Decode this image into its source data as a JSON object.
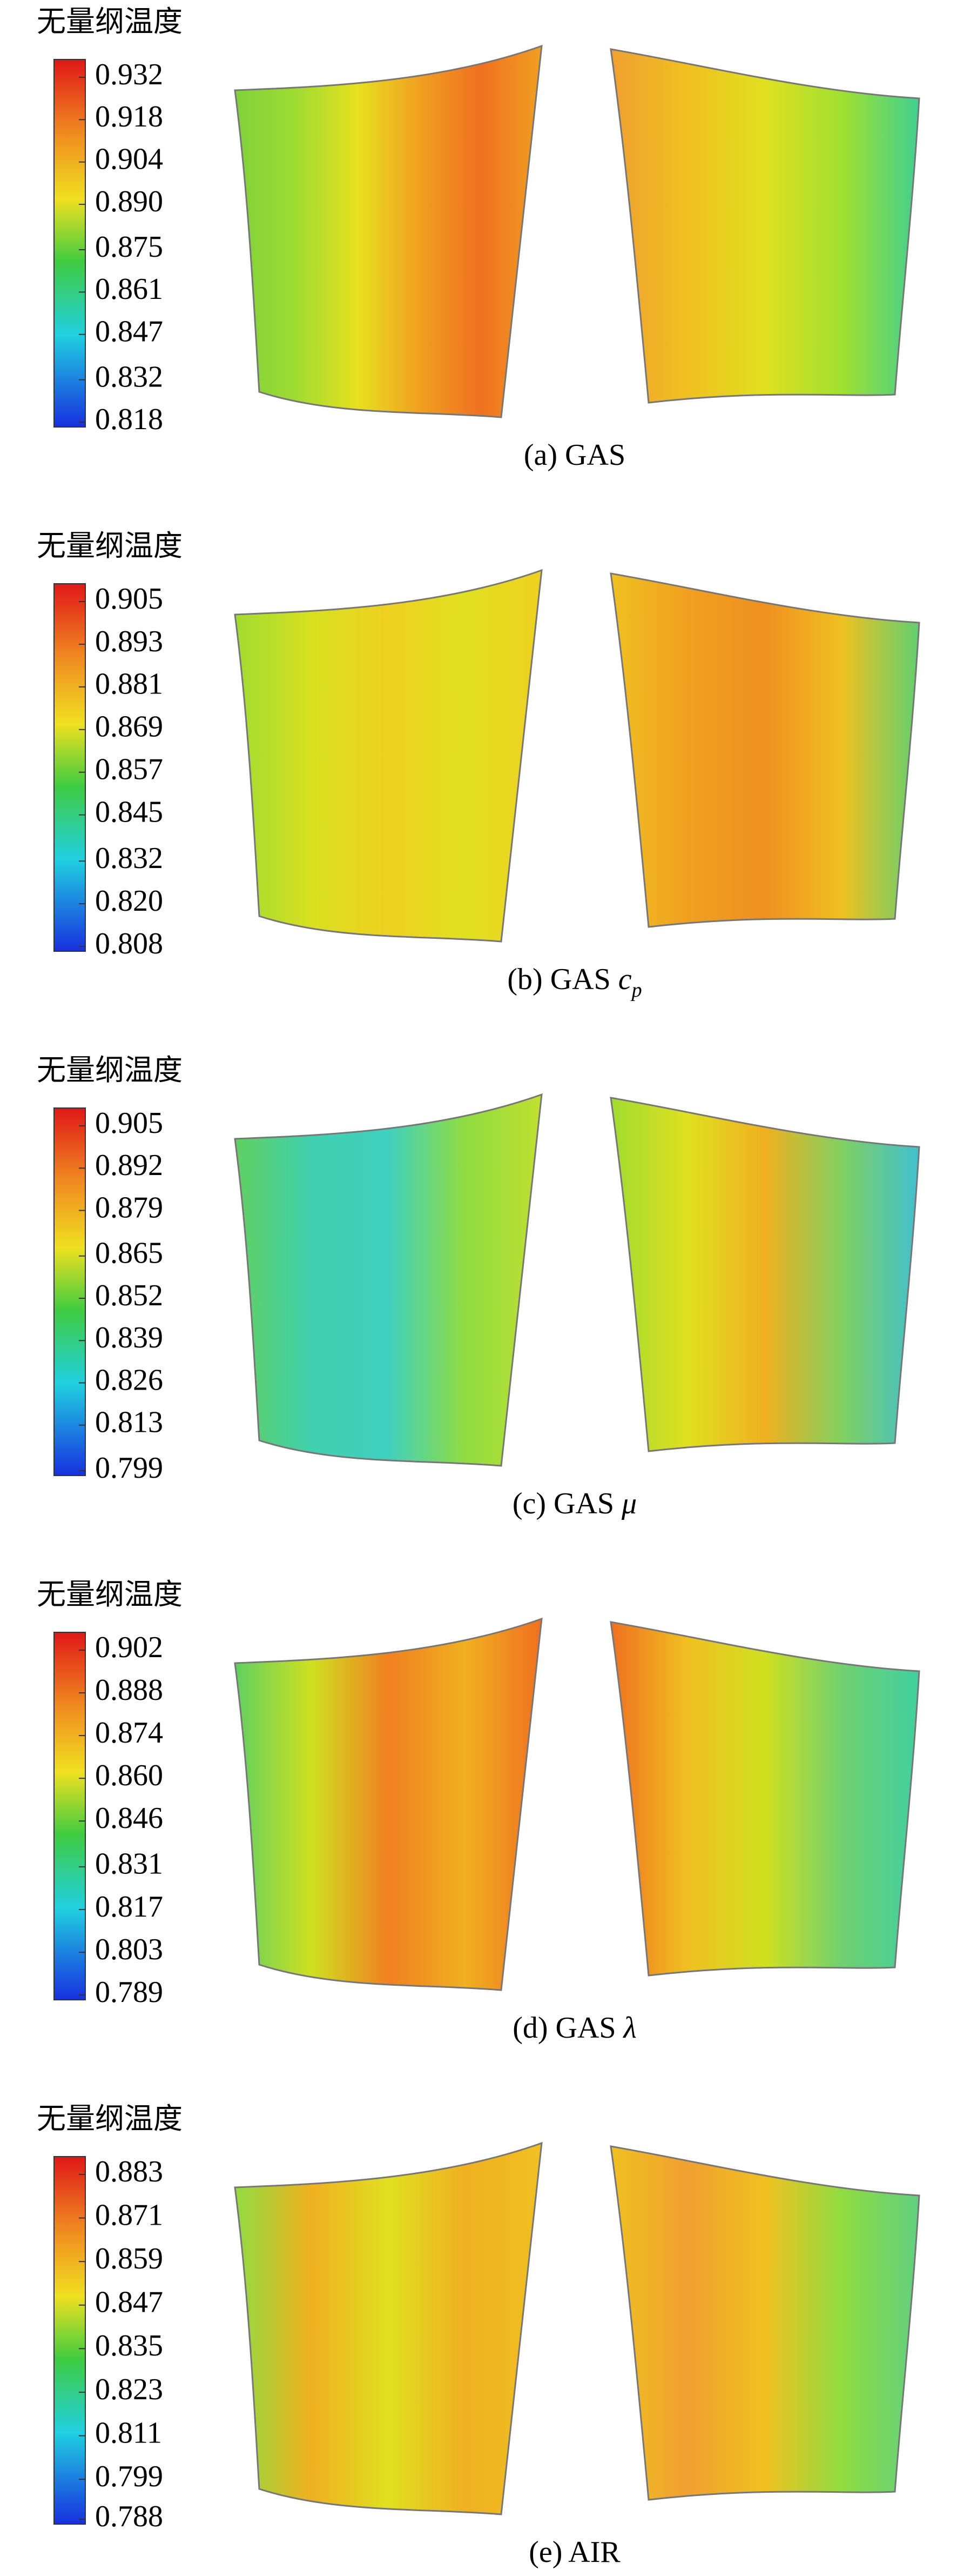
{
  "panels": [
    {
      "chart_data": {
        "type": "colorbar",
        "title": "无量纲温度",
        "ylim": [
          0.818,
          0.932
        ],
        "yticks": [
          0.932,
          0.918,
          0.904,
          {
            "value": 0.89,
            "label": "0.890"
          },
          0.875,
          0.861,
          0.847,
          0.832,
          0.818
        ]
      },
      "caption": {
        "text": "(a) GAS"
      }
    },
    {
      "chart_data": {
        "type": "colorbar",
        "title": "无量纲温度",
        "ylim": [
          0.808,
          0.905
        ],
        "yticks": [
          0.905,
          0.893,
          0.881,
          0.869,
          0.857,
          0.845,
          0.832,
          {
            "value": 0.82,
            "label": "0.820"
          },
          0.808
        ]
      },
      "caption": {
        "text": "(b) GAS",
        "symbol": "c",
        "subscript": "p"
      }
    },
    {
      "chart_data": {
        "type": "colorbar",
        "title": "无量纲温度",
        "ylim": [
          0.799,
          0.905
        ],
        "yticks": [
          0.905,
          0.892,
          0.879,
          0.865,
          0.852,
          0.839,
          0.826,
          0.813,
          0.799
        ]
      },
      "caption": {
        "text": "(c) GAS",
        "symbol": "μ"
      }
    },
    {
      "chart_data": {
        "type": "colorbar",
        "title": "无量纲温度",
        "ylim": [
          0.789,
          0.902
        ],
        "yticks": [
          0.902,
          0.888,
          0.874,
          {
            "value": 0.86,
            "label": "0.860"
          },
          0.846,
          0.831,
          0.817,
          0.803,
          0.789
        ]
      },
      "caption": {
        "text": "(d) GAS",
        "symbol": "λ"
      }
    },
    {
      "chart_data": {
        "type": "colorbar",
        "title": "无量纲温度",
        "ylim": [
          0.788,
          0.883
        ],
        "yticks": [
          0.883,
          0.871,
          0.859,
          0.847,
          0.835,
          0.823,
          0.811,
          0.799,
          0.788
        ]
      },
      "caption": {
        "text": "(e) AIR"
      }
    }
  ]
}
